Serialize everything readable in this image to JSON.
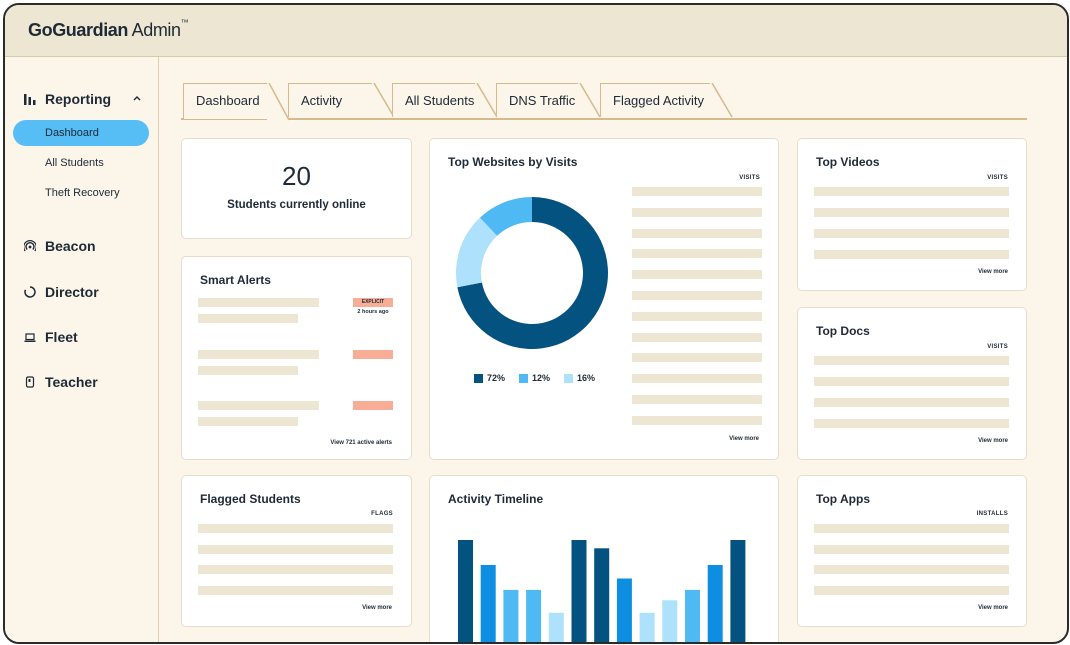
{
  "app": {
    "brand_bold": "GoGuardian",
    "brand_light": " Admin",
    "trademark": "™"
  },
  "sidebar": {
    "reporting": {
      "label": "Reporting",
      "icon": "bar-chart-icon",
      "expanded": true
    },
    "sub_items": [
      {
        "label": "Dashboard",
        "active": true
      },
      {
        "label": "All Students",
        "active": false
      },
      {
        "label": "Theft Recovery",
        "active": false
      }
    ],
    "sections": [
      {
        "label": "Beacon",
        "icon": "beacon-icon"
      },
      {
        "label": "Director",
        "icon": "director-icon"
      },
      {
        "label": "Fleet",
        "icon": "laptop-icon"
      },
      {
        "label": "Teacher",
        "icon": "teacher-icon"
      }
    ]
  },
  "tabs": [
    {
      "label": "Dashboard",
      "active": true
    },
    {
      "label": "Activity",
      "active": false
    },
    {
      "label": "All Students",
      "active": false
    },
    {
      "label": "DNS Traffic",
      "active": false
    },
    {
      "label": "Flagged Activity",
      "active": false
    }
  ],
  "online": {
    "count": "20",
    "label": "Students currently online"
  },
  "smart_alerts": {
    "title": "Smart Alerts",
    "badge": "EXPLICIT",
    "time": "2 hours ago",
    "footer": "View 721 active alerts"
  },
  "top_websites": {
    "title": "Top Websites by Visits",
    "column": "VISITS",
    "footer": "View more",
    "legend": [
      {
        "label": "72%",
        "color": "#04527f",
        "value": 72
      },
      {
        "label": "12%",
        "color": "#4fb9f3",
        "value": 12
      },
      {
        "label": "16%",
        "color": "#aee1fb",
        "value": 16
      }
    ]
  },
  "top_videos": {
    "title": "Top Videos",
    "column": "VISITS",
    "footer": "View more"
  },
  "top_docs": {
    "title": "Top Docs",
    "column": "VISITS",
    "footer": "View more"
  },
  "flagged_students": {
    "title": "Flagged Students",
    "column": "FLAGS",
    "footer": "View more"
  },
  "activity_timeline": {
    "title": "Activity Timeline"
  },
  "top_apps": {
    "title": "Top Apps",
    "column": "INSTALLS",
    "footer": "View more"
  },
  "chart_data": {
    "type": "bar",
    "values": [
      100,
      76,
      52,
      52,
      30,
      100,
      92,
      63,
      30,
      42,
      52,
      76,
      100
    ],
    "colors": [
      "#04527f",
      "#0d8ee0",
      "#4fb9f3",
      "#4fb9f3",
      "#aee1fb",
      "#04527f",
      "#04527f",
      "#0d8ee0",
      "#aee1fb",
      "#aee1fb",
      "#4fb9f3",
      "#0d8ee0",
      "#04527f"
    ]
  }
}
